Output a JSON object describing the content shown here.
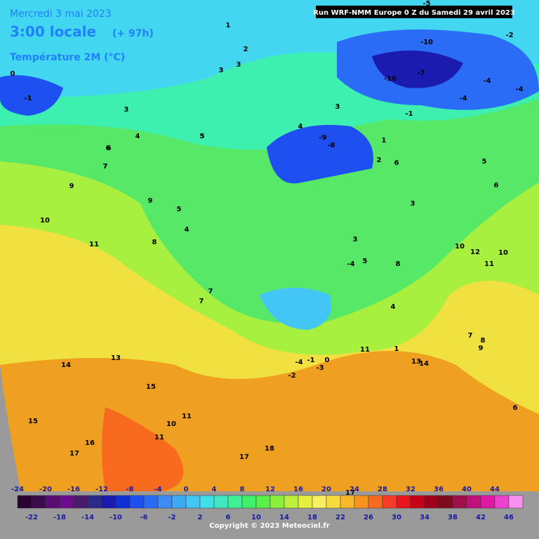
{
  "header": {
    "date": "Mercredi 3 mai 2023",
    "time": "3:00 locale",
    "lead": "(+ 97h)",
    "variable": "Température 2M (°C)",
    "run": "Run WRF-NMM Europe 0 Z du Samedi 29 avril 2023"
  },
  "map": {
    "contour_labels": [
      1,
      2,
      3,
      3,
      3,
      4,
      5,
      6,
      7,
      9,
      10,
      11,
      13,
      14,
      15,
      15,
      16,
      17,
      18,
      17,
      11,
      10,
      11,
      9,
      7,
      7,
      5,
      4,
      -1,
      -9,
      -8,
      -10,
      -4,
      -4,
      -2,
      -5,
      -10,
      -4,
      -7,
      -1,
      0,
      6,
      1,
      2,
      3,
      4,
      5,
      6,
      8,
      7,
      10,
      12,
      10,
      11,
      14,
      13,
      17,
      -1,
      -3,
      -2,
      -4,
      0,
      11,
      6,
      4,
      1,
      9,
      8,
      7,
      6,
      5,
      3,
      3,
      -4,
      5,
      8
    ]
  },
  "legend": {
    "top": [
      -24,
      -20,
      -16,
      -12,
      -8,
      -4,
      0,
      4,
      8,
      12,
      16,
      20,
      24,
      28,
      32,
      36,
      40,
      44
    ],
    "bottom": [
      -22,
      -18,
      -14,
      -10,
      -6,
      -2,
      2,
      6,
      10,
      14,
      18,
      22,
      26,
      30,
      34,
      38,
      42,
      46
    ],
    "colors": [
      "#2a0030",
      "#3c0b4e",
      "#5a0c72",
      "#6d0d8e",
      "#4a1b6a",
      "#2b2a8a",
      "#1b1bb0",
      "#0f2fd8",
      "#1e4ff0",
      "#2a6cf5",
      "#3b8cf5",
      "#3eaaf5",
      "#43c6f5",
      "#40e0e8",
      "#3ee8c0",
      "#3ef096",
      "#40f06a",
      "#5af048",
      "#8cf03a",
      "#bcf03a",
      "#e6f03c",
      "#f8f060",
      "#f8dc3c",
      "#f8b82a",
      "#f8941e",
      "#f86a1e",
      "#f83c28",
      "#e8141e",
      "#c8001a",
      "#a0001a",
      "#7e0a1e",
      "#a0104a",
      "#c0107a",
      "#e018a6",
      "#f040d0",
      "#f890f0"
    ]
  },
  "footer": {
    "copyright": "Copyright © 2023 Meteociel.fr"
  }
}
